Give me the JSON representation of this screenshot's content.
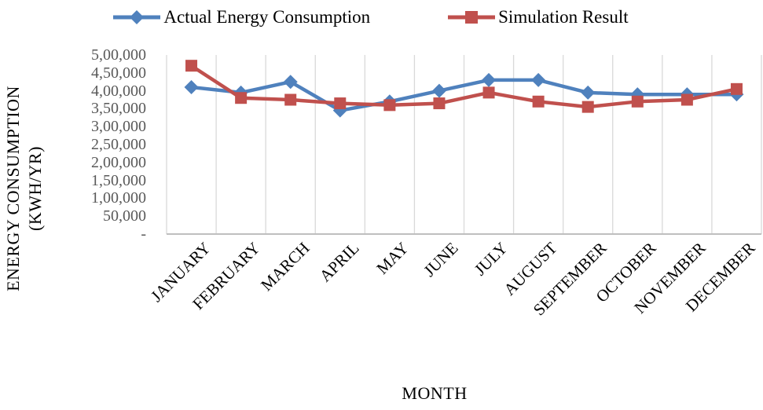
{
  "legend": {
    "items": [
      {
        "label": "Actual Energy Consumption",
        "series_index": 0
      },
      {
        "label": "Simulation Result",
        "series_index": 1
      }
    ]
  },
  "axes": {
    "y_title_line1": "ENERGY CONSUMPTION",
    "y_title_line2": "(KWH/YR)",
    "x_title": "MONTH"
  },
  "chart_data": {
    "type": "line",
    "title": "",
    "xlabel": "MONTH",
    "ylabel": "ENERGY CONSUMPTION (KWH/YR)",
    "categories": [
      "JANUARY",
      "FEBRUARY",
      "MARCH",
      "APRIL",
      "MAY",
      "JUNE",
      "JULY",
      "AUGUST",
      "SEPTEMBER",
      "OCTOBER",
      "NOVEMBER",
      "DECEMBER"
    ],
    "series": [
      {
        "name": "Actual Energy Consumption",
        "color": "#4F81BD",
        "marker": "diamond",
        "values": [
          410000,
          395000,
          425000,
          345000,
          370000,
          400000,
          430000,
          430000,
          395000,
          390000,
          390000,
          390000
        ]
      },
      {
        "name": "Simulation Result",
        "color": "#C0504D",
        "marker": "square",
        "values": [
          470000,
          380000,
          375000,
          365000,
          360000,
          365000,
          395000,
          370000,
          355000,
          370000,
          375000,
          405000
        ]
      }
    ],
    "ylim": [
      0,
      500000
    ],
    "y_tick_step": 50000,
    "y_tick_labels_top_to_bottom": [
      "5,00,000",
      "4,50,000",
      "4,00,000",
      "3,50,000",
      "3,00,000",
      "2,50,000",
      "2,00,000",
      "1,50,000",
      "1,00,000",
      "50,000",
      "-"
    ],
    "number_format": "indian-lakh",
    "grid": {
      "vertical": true,
      "horizontal": false,
      "color": "#D9D9D9"
    },
    "axis_line_color": "#BFBFBF",
    "tick_label_color": "#595959",
    "legend_position": "top"
  }
}
